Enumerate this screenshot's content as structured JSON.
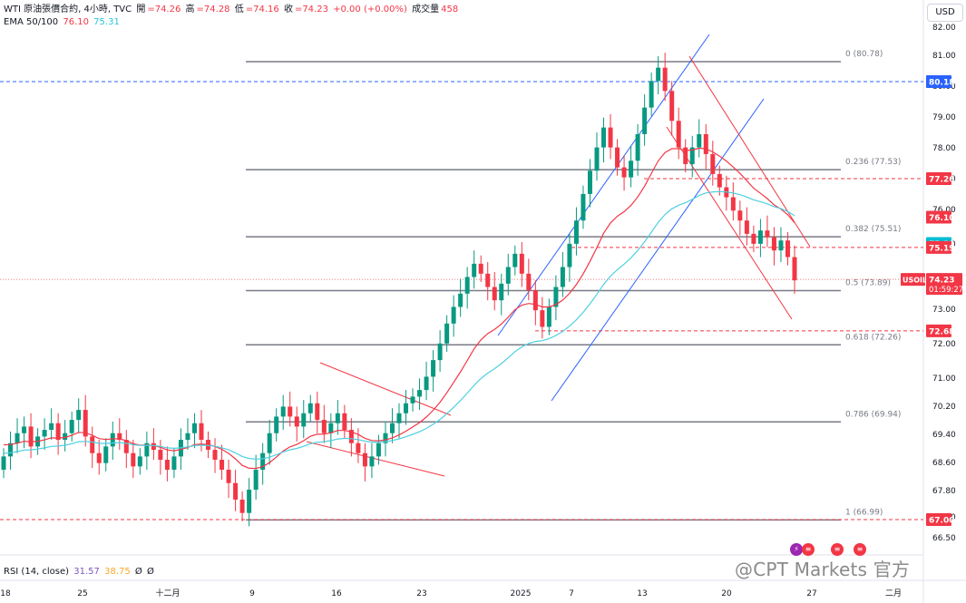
{
  "header": {
    "symbol": "WTI 原油張價合約, 4小時, TVC",
    "open_label": "開",
    "open_value": "=74.26",
    "high_label": "高",
    "high_value": "=74.28",
    "low_label": "低",
    "low_value": "=74.16",
    "close_label": "收",
    "close_value": "=74.23",
    "change": "+0.00 (+0.00%)",
    "volume_label": "成交量",
    "volume_value": "458"
  },
  "ema": {
    "label": "EMA 50/100",
    "ema50": "76.10",
    "ema100": "75.31"
  },
  "rsi": {
    "label": "RSI (14, close)",
    "v1": "31.57",
    "v2": "38.75",
    "v3": "Ø",
    "v4": "Ø"
  },
  "currency_button": "USD",
  "watermark": "@CPT Markets 官方",
  "colors": {
    "up": "#089981",
    "down": "#f23645",
    "ema50": "#f23645",
    "ema100": "#4dd0e1",
    "channel_up": "#2962ff",
    "channel_down": "#f23645",
    "fib": "#787b86",
    "price_label": "#f23645",
    "blue_level": "#2962ff"
  },
  "news_icons": [
    "lightning-icon",
    "us-flag-icon",
    "us-flag-icon",
    "us-flag-icon"
  ],
  "chart_data": {
    "type": "candlestick",
    "y_ticks": [
      "82.00",
      "81.00",
      "80.00",
      "79.00",
      "78.00",
      "77.00",
      "76.00",
      "75.00",
      "73.00",
      "72.00",
      "71.00",
      "70.20",
      "69.40",
      "68.60",
      "67.80",
      "67.00",
      "66.50"
    ],
    "x_ticks": [
      "18",
      "25",
      "十二月",
      "9",
      "16",
      "23",
      "2025",
      "7",
      "13",
      "20",
      "27",
      "二月"
    ],
    "ylim": [
      66.3,
      82.2
    ],
    "fib_levels": [
      {
        "label": "0 (80.78)",
        "value": 80.78
      },
      {
        "label": "0.236 (77.53)",
        "value": 77.53
      },
      {
        "label": "0.382 (75.51)",
        "value": 75.51
      },
      {
        "label": "0.5 (73.89)",
        "value": 73.89
      },
      {
        "label": "0.618 (72.26)",
        "value": 72.26
      },
      {
        "label": "0.786 (69.94)",
        "value": 69.94
      },
      {
        "label": "1 (66.99)",
        "value": 66.99
      }
    ],
    "price_labels": [
      {
        "text": "80.18",
        "value": 80.18,
        "style": "blue"
      },
      {
        "text": "77.26",
        "value": 77.26,
        "style": "red"
      },
      {
        "text": "76.10",
        "value": 76.1,
        "style": "red"
      },
      {
        "text": "75.31",
        "value": 75.31,
        "style": "cyan"
      },
      {
        "text": "75.19",
        "value": 75.19,
        "style": "red"
      },
      {
        "text": "72.68",
        "value": 72.68,
        "style": "red"
      },
      {
        "text": "67.00",
        "value": 67.0,
        "style": "red"
      }
    ],
    "current_price": {
      "symbol": "USOIL",
      "price": "74.23",
      "countdown": "01:59:27",
      "value": 74.23
    },
    "candles_close": [
      68.9,
      69.3,
      69.6,
      69.8,
      69.2,
      69.5,
      69.7,
      69.9,
      69.4,
      69.6,
      70.0,
      70.3,
      69.5,
      69.0,
      68.7,
      69.2,
      69.6,
      69.4,
      69.0,
      68.6,
      68.9,
      69.3,
      69.1,
      68.8,
      68.5,
      68.9,
      69.4,
      69.6,
      69.9,
      69.4,
      69.1,
      68.8,
      68.5,
      68.1,
      67.6,
      67.2,
      67.9,
      68.5,
      69.0,
      69.6,
      70.1,
      70.4,
      70.1,
      69.8,
      70.2,
      70.5,
      70.0,
      69.6,
      69.9,
      70.2,
      69.7,
      69.3,
      69.0,
      68.6,
      68.9,
      69.3,
      69.6,
      69.9,
      70.2,
      70.5,
      70.7,
      70.9,
      71.3,
      71.8,
      72.3,
      72.9,
      73.4,
      73.8,
      74.3,
      74.7,
      74.4,
      74.0,
      73.6,
      74.1,
      74.6,
      75.0,
      74.4,
      73.9,
      73.3,
      72.8,
      73.4,
      74.0,
      74.6,
      75.3,
      76.0,
      76.8,
      77.5,
      78.2,
      78.8,
      78.2,
      77.6,
      77.3,
      77.8,
      78.6,
      79.4,
      80.2,
      80.6,
      79.9,
      79.0,
      78.2,
      77.7,
      78.2,
      78.6,
      78.0,
      77.4,
      77.0,
      76.7,
      76.3,
      76.0,
      75.6,
      75.3,
      75.7,
      75.5,
      75.1,
      75.4,
      74.9,
      74.2
    ]
  }
}
